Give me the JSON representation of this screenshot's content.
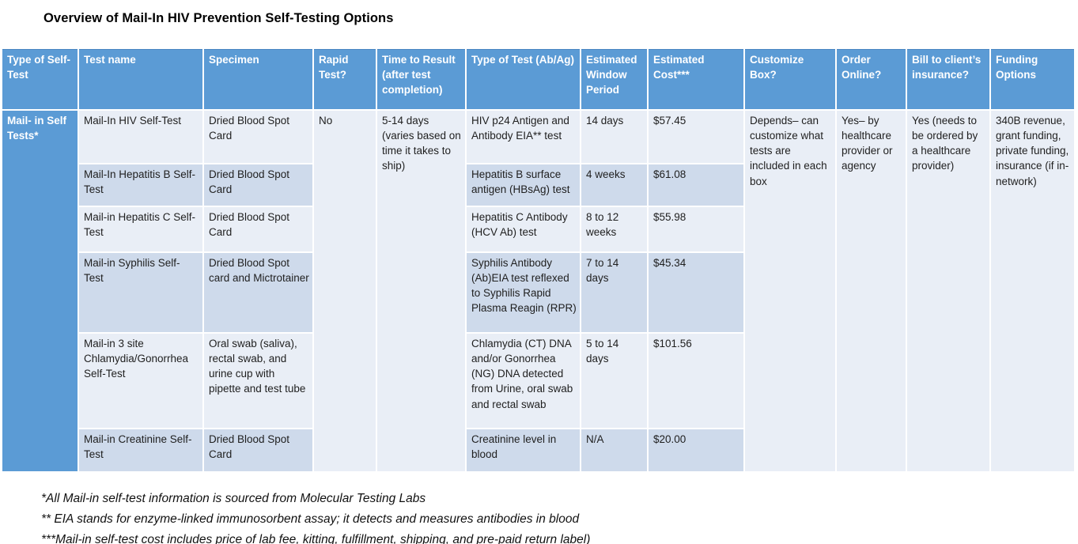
{
  "title": "Overview of Mail-In HIV Prevention Self-Testing Options",
  "colors": {
    "header_blue": "#5B9BD5",
    "light_row": "#E9EEF6",
    "banded_row": "#CEDAEB"
  },
  "table": {
    "headers": [
      "Type of Self-Test",
      "Test name",
      "Specimen",
      "Rapid Test?",
      "Time to Result (after test completion)",
      "Type of Test (Ab/Ag)",
      "Estimated Window Period",
      "Estimated Cost***",
      "Customize Box?",
      "Order Online?",
      "Bill to client’s insurance?",
      "Funding Options"
    ],
    "group_label": "Mail- in Self Tests*",
    "rapid_test": "No",
    "time_to_result": "5-14 days (varies based on time it takes to ship)",
    "rows": [
      {
        "test_name": "Mail-In HIV Self-Test",
        "specimen": "Dried Blood Spot Card",
        "type_of_test": "HIV p24 Antigen and Antibody EIA** test",
        "window_period": "14 days",
        "cost": "$57.45"
      },
      {
        "test_name": "Mail-In Hepatitis B Self-Test",
        "specimen": "Dried Blood Spot Card",
        "type_of_test": "Hepatitis B surface antigen (HBsAg) test",
        "window_period": "4 weeks",
        "cost": "$61.08"
      },
      {
        "test_name": "Mail-in Hepatitis C Self-Test",
        "specimen": "Dried Blood Spot Card",
        "type_of_test": "Hepatitis C Antibody (HCV Ab) test",
        "window_period": "8 to 12 weeks",
        "cost": "$55.98"
      },
      {
        "test_name": "Mail-in Syphilis Self-Test",
        "specimen": "Dried Blood Spot card and Mictrotainer",
        "type_of_test": "Syphilis Antibody (Ab)EIA test reflexed to Syphilis Rapid Plasma Reagin (RPR)",
        "window_period": "7 to 14 days",
        "cost": "$45.34"
      },
      {
        "test_name": "Mail-in 3 site Chlamydia/Gonorrhea Self-Test",
        "specimen": "Oral swab (saliva), rectal swab, and urine cup with pipette and test tube",
        "type_of_test": "Chlamydia (CT) DNA and/or Gonorrhea (NG) DNA detected from Urine, oral swab and rectal swab",
        "window_period": "5 to 14 days",
        "cost": "$101.56"
      },
      {
        "test_name": "Mail-in Creatinine Self-Test",
        "specimen": "Dried Blood Spot Card",
        "type_of_test": "Creatinine level in blood",
        "window_period": "N/A",
        "cost": "$20.00"
      }
    ],
    "customize_box": "Depends– can customize what tests are included in each box",
    "order_online": "Yes–  by healthcare provider or agency",
    "bill_to_insurance": "Yes (needs to be ordered by a healthcare provider)",
    "funding_options": "340B revenue, grant funding, private funding, insurance (if in-network)"
  },
  "footnotes": [
    "*All Mail-in self-test information is sourced from Molecular Testing Labs",
    "** EIA stands for enzyme-linked immunosorbent assay; it detects and measures antibodies in blood",
    "***Mail-in self-test cost includes price of lab fee, kitting, fulfillment, shipping, and pre-paid return label)"
  ]
}
